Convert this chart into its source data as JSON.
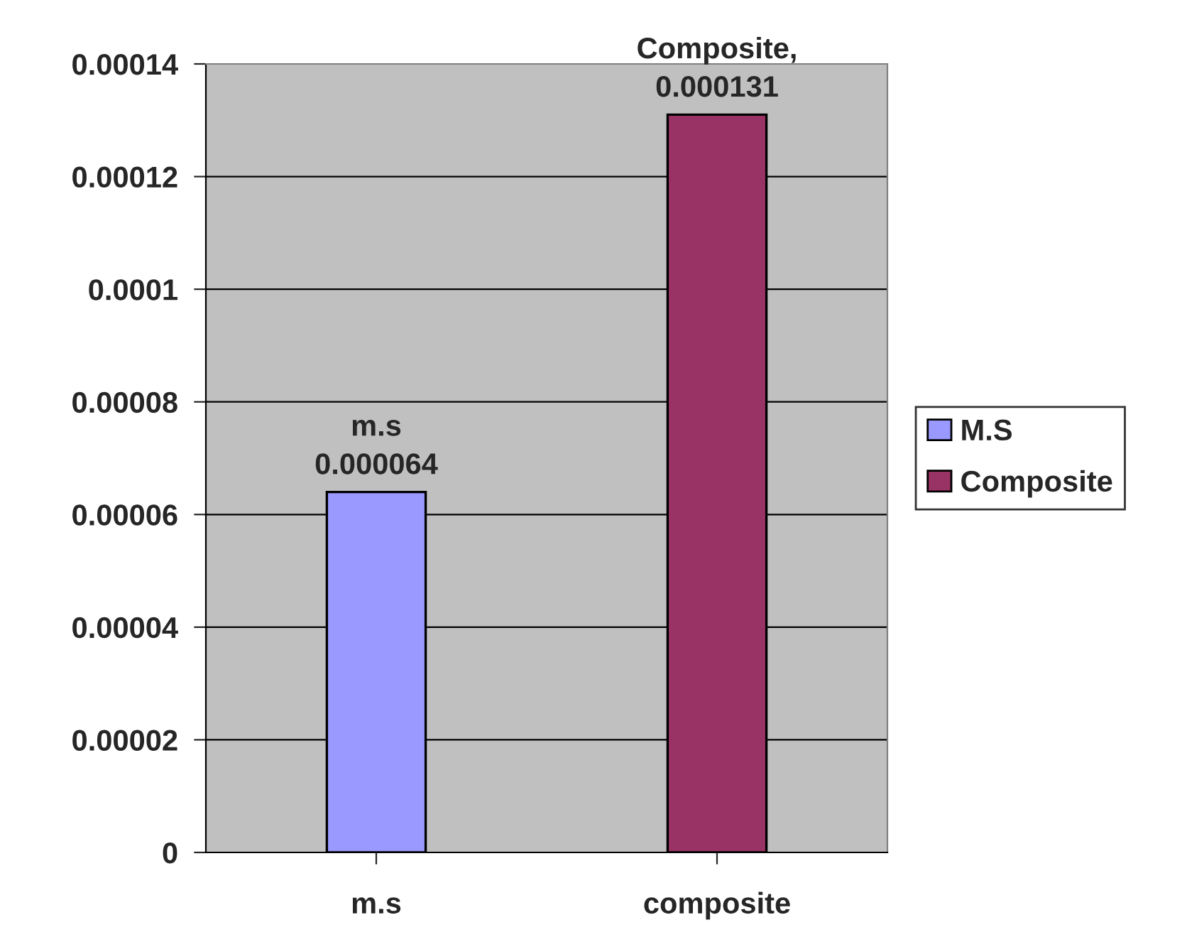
{
  "chart_data": {
    "type": "bar",
    "categories": [
      "m.s",
      "composite"
    ],
    "series": [
      {
        "name": "M.S",
        "color": "#9999ff",
        "values": [
          6.4e-05,
          null
        ],
        "value_labels": [
          "m.s\n0.000064",
          null
        ]
      },
      {
        "name": "Composite",
        "color": "#993366",
        "values": [
          null,
          0.000131
        ],
        "value_labels": [
          null,
          "Composite,\n0.000131"
        ]
      }
    ],
    "ylim": [
      0,
      0.00014
    ],
    "yticks": [
      {
        "value": 0,
        "label": "0"
      },
      {
        "value": 2e-05,
        "label": "0.00002"
      },
      {
        "value": 4e-05,
        "label": "0.00004"
      },
      {
        "value": 6e-05,
        "label": "0.00006"
      },
      {
        "value": 8e-05,
        "label": "0.00008"
      },
      {
        "value": 0.0001,
        "label": "0.0001"
      },
      {
        "value": 0.00012,
        "label": "0.00012"
      },
      {
        "value": 0.00014,
        "label": "0.00014"
      }
    ],
    "grid": "y",
    "legend": "right"
  }
}
